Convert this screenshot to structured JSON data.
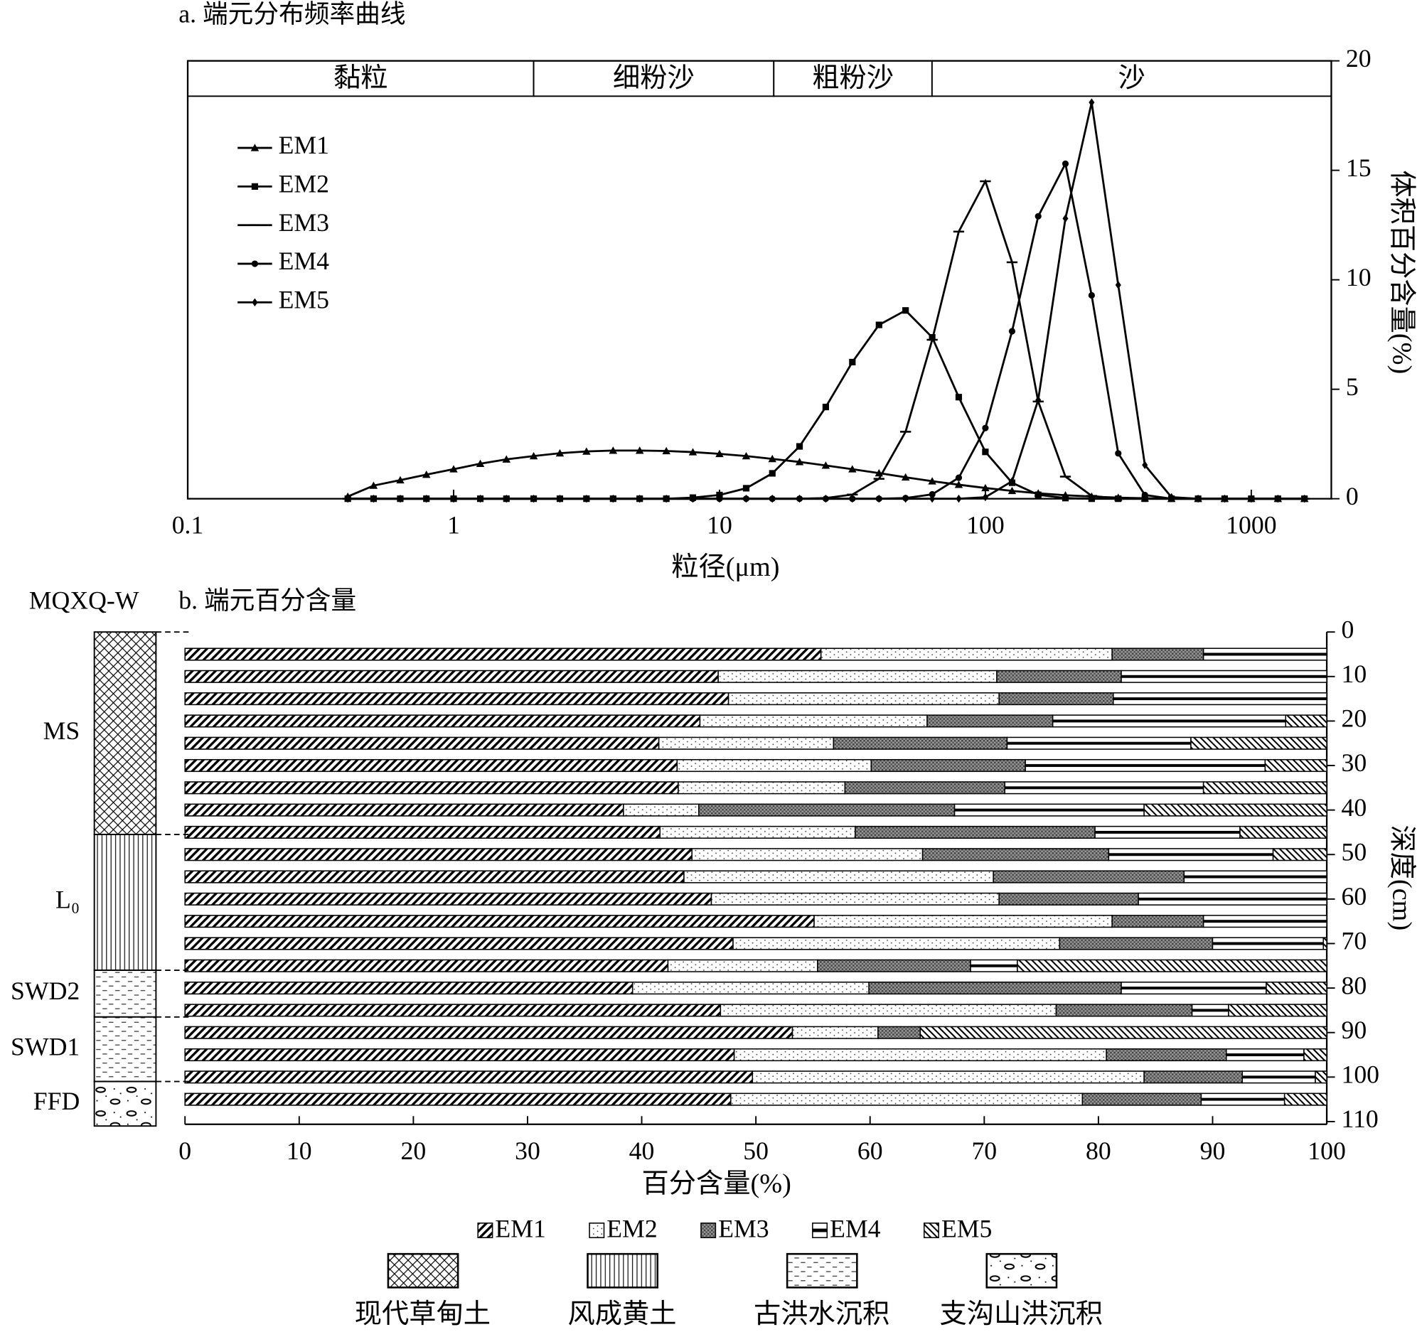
{
  "chart_data": [
    {
      "type": "line",
      "title": "a. 端元分布频率曲线",
      "xlabel": "粒径(μm)",
      "ylabel": "体积百分含量(%)",
      "xscale": "log",
      "xlim": [
        0.1,
        2000
      ],
      "xticks": [
        0.1,
        1,
        10,
        100,
        1000
      ],
      "ylim": [
        0,
        20
      ],
      "yticks": [
        0,
        5,
        10,
        15,
        20
      ],
      "yaxis_side": "right",
      "legend": "upper left",
      "bands": [
        {
          "label": "黏粒",
          "range": [
            0.1,
            2
          ]
        },
        {
          "label": "细粉沙",
          "range": [
            2,
            16
          ]
        },
        {
          "label": "粗粉沙",
          "range": [
            16,
            63
          ]
        },
        {
          "label": "沙",
          "range": [
            63,
            2000
          ]
        }
      ],
      "x": [
        0.4,
        0.5,
        0.63,
        0.79,
        1,
        1.26,
        1.58,
        2,
        2.51,
        3.16,
        3.98,
        5.01,
        6.31,
        7.94,
        10,
        12.6,
        15.8,
        20,
        25.1,
        31.6,
        39.8,
        50.1,
        63.1,
        79.4,
        100,
        126,
        158,
        200,
        251,
        316,
        398,
        501,
        631,
        794,
        1000,
        1259,
        1585
      ],
      "series": [
        {
          "name": "EM1",
          "color": "#000000",
          "marker": "triangle",
          "values": [
            0.1,
            0.6,
            0.85,
            1.1,
            1.35,
            1.6,
            1.8,
            1.95,
            2.08,
            2.16,
            2.2,
            2.2,
            2.18,
            2.13,
            2.05,
            1.95,
            1.82,
            1.68,
            1.52,
            1.35,
            1.17,
            0.98,
            0.8,
            0.64,
            0.49,
            0.36,
            0.25,
            0.16,
            0.1,
            0.05,
            0.02,
            0,
            0,
            0,
            0,
            0,
            0
          ]
        },
        {
          "name": "EM2",
          "color": "#000000",
          "marker": "square",
          "values": [
            0,
            0,
            0,
            0,
            0,
            0,
            0,
            0,
            0,
            0,
            0,
            0,
            0,
            0.05,
            0.17,
            0.48,
            1.16,
            2.39,
            4.19,
            6.24,
            7.94,
            8.6,
            7.37,
            4.64,
            2.14,
            0.73,
            0.18,
            0.03,
            0,
            0,
            0,
            0,
            0,
            0,
            0,
            0,
            0
          ]
        },
        {
          "name": "EM3",
          "color": "#000000",
          "marker": "dash",
          "values": [
            0,
            0,
            0,
            0,
            0,
            0,
            0,
            0,
            0,
            0,
            0,
            0,
            0,
            0,
            0,
            0,
            0,
            0,
            0.03,
            0.19,
            0.91,
            3.06,
            7.26,
            12.2,
            14.5,
            10.8,
            4.44,
            1.01,
            0.13,
            0,
            0,
            0,
            0,
            0,
            0,
            0,
            0
          ]
        },
        {
          "name": "EM4",
          "color": "#000000",
          "marker": "circle",
          "values": [
            0,
            0,
            0,
            0,
            0,
            0,
            0,
            0,
            0,
            0,
            0,
            0,
            0,
            0,
            0,
            0,
            0,
            0,
            0,
            0,
            0,
            0.03,
            0.2,
            0.96,
            3.23,
            7.65,
            12.9,
            15.3,
            9.29,
            2.07,
            0.17,
            0,
            0,
            0,
            0,
            0,
            0
          ]
        },
        {
          "name": "EM5",
          "color": "#000000",
          "marker": "diamond",
          "values": [
            0,
            0,
            0,
            0,
            0,
            0,
            0,
            0,
            0,
            0,
            0,
            0,
            0,
            0,
            0,
            0,
            0,
            0,
            0,
            0,
            0,
            0,
            0,
            0,
            0.07,
            0.8,
            4.51,
            12.8,
            18.1,
            9.76,
            1.54,
            0.07,
            0,
            0,
            0,
            0,
            0
          ]
        }
      ]
    },
    {
      "type": "stacked_bar",
      "orientation": "horizontal",
      "site": "MQXQ-W",
      "title": "b. 端元百分含量",
      "xlabel": "百分含量(%)",
      "ylabel": "深度(cm)",
      "xlim": [
        0,
        100
      ],
      "xticks": [
        0,
        10,
        20,
        30,
        40,
        50,
        60,
        70,
        80,
        90,
        100
      ],
      "ylim": [
        0,
        110
      ],
      "yticks": [
        0,
        10,
        20,
        30,
        40,
        50,
        60,
        70,
        80,
        90,
        100,
        110
      ],
      "yaxis_side": "right",
      "depths": [
        5,
        10,
        15,
        20,
        25,
        30,
        35,
        40,
        45,
        50,
        55,
        60,
        65,
        70,
        75,
        80,
        85,
        90,
        95,
        100,
        105
      ],
      "series": [
        {
          "name": "EM1",
          "pattern": "hatch",
          "values": [
            55.7,
            46.7,
            47.6,
            45.1,
            41.5,
            43.1,
            43.2,
            38.4,
            41.6,
            44.4,
            43.7,
            46.1,
            55.1,
            48.0,
            42.3,
            39.2,
            46.9,
            53.2,
            48.1,
            49.7,
            47.8
          ]
        },
        {
          "name": "EM2",
          "pattern": "dots",
          "values": [
            25.5,
            24.4,
            23.7,
            19.9,
            15.3,
            17.0,
            14.6,
            6.6,
            17.1,
            20.2,
            27.1,
            25.2,
            26.1,
            28.6,
            13.1,
            20.7,
            29.4,
            7.5,
            32.6,
            34.3,
            30.8
          ]
        },
        {
          "name": "EM3",
          "pattern": "grid",
          "values": [
            8.0,
            10.9,
            10.0,
            11.0,
            15.2,
            13.5,
            14.0,
            22.4,
            21.0,
            16.3,
            16.7,
            12.2,
            8.0,
            13.4,
            13.4,
            22.1,
            11.9,
            3.7,
            10.5,
            8.6,
            10.4
          ]
        },
        {
          "name": "EM4",
          "pattern": "hline",
          "values": [
            10.8,
            18.0,
            18.7,
            20.4,
            16.1,
            21.0,
            17.4,
            16.6,
            12.7,
            14.4,
            12.5,
            16.5,
            10.8,
            9.7,
            4.1,
            12.7,
            3.2,
            0,
            6.8,
            6.4,
            7.3
          ]
        },
        {
          "name": "EM5",
          "pattern": "backhatch",
          "values": [
            0,
            0,
            0,
            3.6,
            11.9,
            5.4,
            10.8,
            16.0,
            7.6,
            4.7,
            0,
            0,
            0,
            0.3,
            27.1,
            5.3,
            8.6,
            35.6,
            2.0,
            1.0,
            3.7
          ]
        }
      ],
      "strata": [
        {
          "label": "MS",
          "top": 0,
          "bottom": 45.5,
          "pattern": "crosshatch"
        },
        {
          "label": "L₀",
          "top": 45.5,
          "bottom": 76,
          "pattern": "vlines"
        },
        {
          "label": "SWD2",
          "top": 76,
          "bottom": 86.5,
          "pattern": "dashes"
        },
        {
          "label": "SWD1",
          "top": 86.5,
          "bottom": 101,
          "pattern": "dashes"
        },
        {
          "label": "FFD",
          "top": 101,
          "bottom": 111,
          "pattern": "pebbles"
        }
      ],
      "lithology_legend": [
        {
          "label": "现代草甸土",
          "pattern": "crosshatch"
        },
        {
          "label": "风成黄土",
          "pattern": "vlines"
        },
        {
          "label": "古洪水沉积",
          "pattern": "dashes"
        },
        {
          "label": "支沟山洪沉积",
          "pattern": "pebbles"
        }
      ]
    }
  ]
}
